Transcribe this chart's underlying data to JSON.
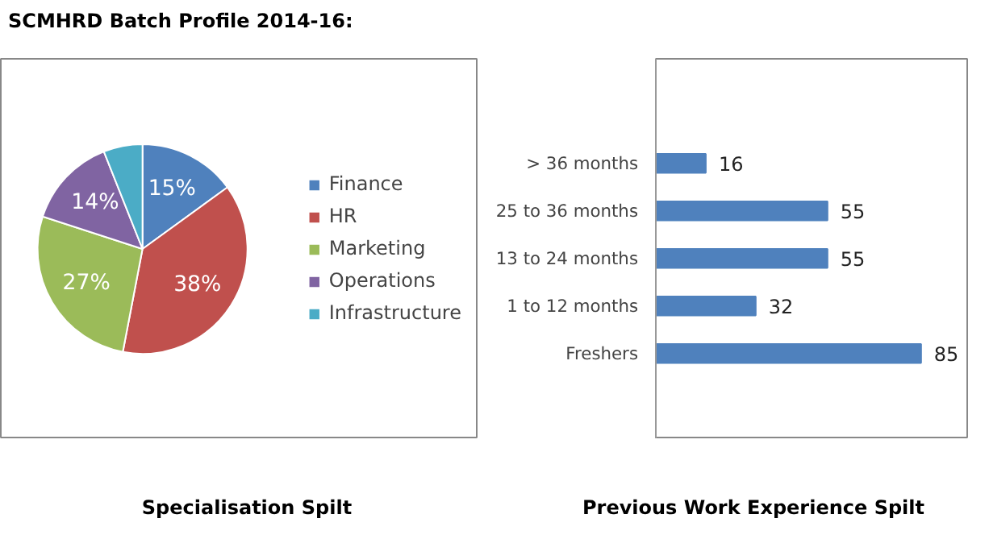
{
  "chart_data": [
    {
      "type": "pie",
      "annotations": [
        "SCMHRD Batch Profile 2014-16:"
      ],
      "xlabel": "Specialisation Spilt",
      "categories": [
        "Finance",
        "HR",
        "Marketing",
        "Operations",
        "Infrastructure"
      ],
      "values": [
        15,
        38,
        27,
        14,
        6
      ],
      "colors": [
        "#4f81bd",
        "#c0504d",
        "#9bbb59",
        "#8064a2",
        "#4bacc6"
      ],
      "value_labels": [
        "15%",
        "38%",
        "27%",
        "14%",
        null
      ],
      "legend": "right"
    },
    {
      "type": "bar",
      "orientation": "horizontal",
      "xlabel": "Previous Work Experience Spilt",
      "categories": [
        "> 36 months",
        "25 to 36 months",
        "13 to 24 months",
        "1 to 12 months",
        "Freshers"
      ],
      "values": [
        16,
        55,
        55,
        32,
        85
      ],
      "color": "#4f81bd",
      "data_labels": true
    }
  ]
}
